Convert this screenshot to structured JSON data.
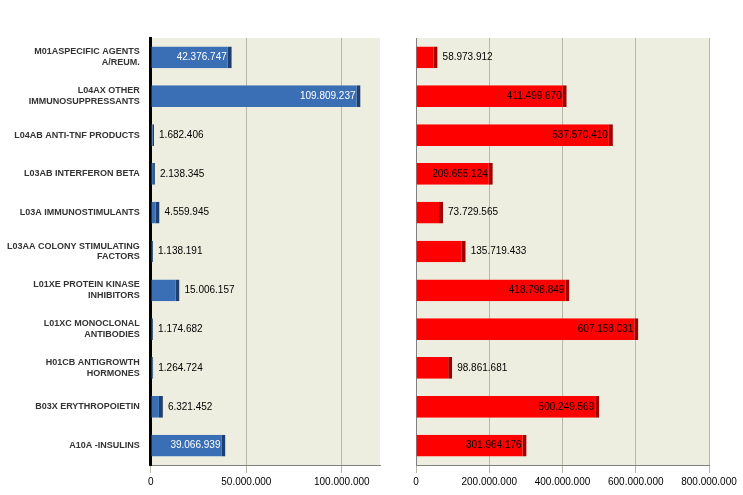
{
  "chart_data": [
    {
      "type": "bar",
      "orientation": "horizontal",
      "grid": true,
      "data_labels": true,
      "color": "#3a6fb5",
      "categories": [
        "M01ASPECIFIC AGENTS A/REUM.",
        "L04AX OTHER IMMUNOSUPPRESSANTS",
        "L04AB ANTI-TNF PRODUCTS",
        "L03AB INTERFERON BETA",
        "L03A IMMUNOSTIMULANTS",
        "L03AA COLONY STIMULATING FACTORS",
        "L01XE PROTEIN KINASE INHIBITORS",
        "L01XC MONOCLONAL ANTIBODIES",
        "H01CB ANTIGROWTH HORMONES",
        "B03X ERYTHROPOIETIN",
        "A10A -INSULINS"
      ],
      "values": [
        42376747,
        109809237,
        1682406,
        2138345,
        4559945,
        1138191,
        15006157,
        1174682,
        1264724,
        6321452,
        39066939
      ],
      "value_labels": [
        "42.376.747",
        "109.809.237",
        "1.682.406",
        "2.138.345",
        "4.559.945",
        "1.138.191",
        "15.006.157",
        "1.174.682",
        "1.264.724",
        "6.321.452",
        "39.066.939"
      ],
      "xlim": [
        0,
        120000000
      ],
      "xticks": [
        0,
        {
          "value": 50000000,
          "label": "50.000.000"
        },
        {
          "value": 100000000,
          "label": "100.000.000"
        }
      ]
    },
    {
      "type": "bar",
      "orientation": "horizontal",
      "grid": true,
      "data_labels": true,
      "color": "#ff0000",
      "tick_labels": "x",
      "categories": [
        "M01ASPECIFIC AGENTS A/REUM.",
        "L04AX OTHER IMMUNOSUPPRESSANTS",
        "L04AB ANTI-TNF PRODUCTS",
        "L03AB INTERFERON BETA",
        "L03A IMMUNOSTIMULANTS",
        "L03AA COLONY STIMULATING FACTORS",
        "L01XE PROTEIN KINASE INHIBITORS",
        "L01XC MONOCLONAL ANTIBODIES",
        "H01CB ANTIGROWTH HORMONES",
        "B03X ERYTHROPOIETIN",
        "A10A -INSULINS"
      ],
      "values": [
        58973912,
        411499670,
        537570410,
        209655124,
        73729565,
        135719433,
        418798849,
        607158031,
        98861681,
        500249569,
        301964176
      ],
      "value_labels": [
        "58.973.912",
        "411.499.670",
        "537.570.410",
        "209.655.124",
        "73.729.565",
        "135.719.433",
        "418.798.849",
        "607.158.031",
        "98.861.681",
        "500.249.569",
        "301.964.176"
      ],
      "xlim": [
        0,
        800000000
      ],
      "xticks": [
        0,
        {
          "value": 200000000,
          "label": "200.000.000"
        },
        {
          "value": 400000000,
          "label": "400.000.000"
        },
        {
          "value": 600000000,
          "label": "600.000.000"
        },
        {
          "value": 800000000,
          "label": "800.000.000"
        }
      ]
    }
  ]
}
